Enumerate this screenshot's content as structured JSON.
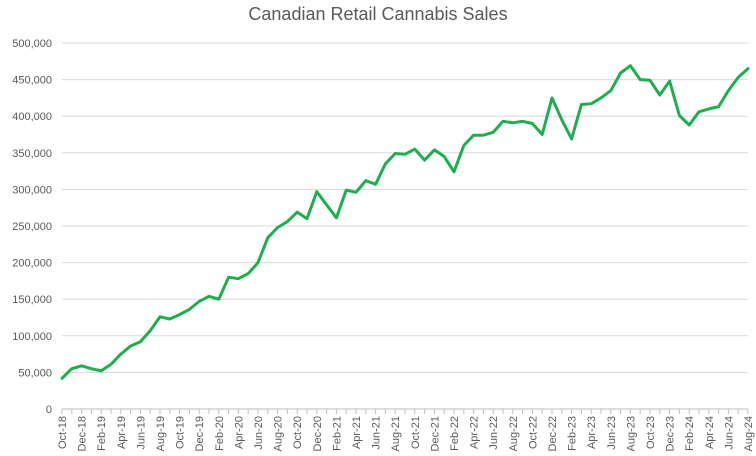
{
  "chart_data": {
    "type": "line",
    "title": "Canadian Retail Cannabis Sales",
    "xlabel": "",
    "ylabel": "",
    "ylim": [
      0,
      500000
    ],
    "y_ticks": [
      0,
      50000,
      100000,
      150000,
      200000,
      250000,
      300000,
      350000,
      400000,
      450000,
      500000
    ],
    "y_tick_labels": [
      "0",
      "50,000",
      "100,000",
      "150,000",
      "200,000",
      "250,000",
      "300,000",
      "350,000",
      "400,000",
      "450,000",
      "500,000"
    ],
    "grid": true,
    "legend": "none",
    "line_color": "#1fae4f",
    "x": [
      "Oct-18",
      "Nov-18",
      "Dec-18",
      "Jan-19",
      "Feb-19",
      "Mar-19",
      "Apr-19",
      "May-19",
      "Jun-19",
      "Jul-19",
      "Aug-19",
      "Sep-19",
      "Oct-19",
      "Nov-19",
      "Dec-19",
      "Jan-20",
      "Feb-20",
      "Mar-20",
      "Apr-20",
      "May-20",
      "Jun-20",
      "Jul-20",
      "Aug-20",
      "Sep-20",
      "Oct-20",
      "Nov-20",
      "Dec-20",
      "Jan-21",
      "Feb-21",
      "Mar-21",
      "Apr-21",
      "May-21",
      "Jun-21",
      "Jul-21",
      "Aug-21",
      "Sep-21",
      "Oct-21",
      "Nov-21",
      "Dec-21",
      "Jan-22",
      "Feb-22",
      "Mar-22",
      "Apr-22",
      "May-22",
      "Jun-22",
      "Jul-22",
      "Aug-22",
      "Sep-22",
      "Oct-22",
      "Nov-22",
      "Dec-22",
      "Jan-23",
      "Feb-23",
      "Mar-23",
      "Apr-23",
      "May-23",
      "Jun-23",
      "Jul-23",
      "Aug-23",
      "Sep-23",
      "Oct-23",
      "Nov-23",
      "Dec-23",
      "Jan-24",
      "Feb-24",
      "Mar-24",
      "Apr-24",
      "May-24",
      "Jun-24",
      "Jul-24",
      "Aug-24"
    ],
    "x_tick_labels": [
      "Oct-18",
      "Dec-18",
      "Feb-19",
      "Apr-19",
      "Jun-19",
      "Aug-19",
      "Oct-19",
      "Dec-19",
      "Feb-20",
      "Apr-20",
      "Jun-20",
      "Aug-20",
      "Oct-20",
      "Dec-20",
      "Feb-21",
      "Apr-21",
      "Jun-21",
      "Aug-21",
      "Oct-21",
      "Dec-21",
      "Feb-22",
      "Apr-22",
      "Jun-22",
      "Aug-22",
      "Oct-22",
      "Dec-22",
      "Feb-23",
      "Apr-23",
      "Jun-23",
      "Aug-23",
      "Oct-23",
      "Dec-23",
      "Feb-24",
      "Apr-24",
      "Jun-24",
      "Aug-24"
    ],
    "series": [
      {
        "values": [
          42000,
          55000,
          59000,
          55000,
          52000,
          61000,
          75000,
          86000,
          92000,
          107000,
          126000,
          123000,
          129000,
          136000,
          147000,
          154000,
          150000,
          180000,
          178000,
          185000,
          200000,
          234000,
          248000,
          256000,
          269000,
          260000,
          297000,
          279000,
          261000,
          299000,
          296000,
          312000,
          307000,
          335000,
          349000,
          348000,
          355000,
          340000,
          354000,
          345000,
          324000,
          360000,
          374000,
          374000,
          378000,
          393000,
          391000,
          393000,
          390000,
          375000,
          425000,
          395000,
          369000,
          416000,
          417000,
          425000,
          435000,
          459000,
          469000,
          450000,
          449000,
          429000,
          448000,
          401000,
          388000,
          406000,
          410000,
          413000,
          435000,
          453000,
          465000
        ]
      }
    ]
  }
}
